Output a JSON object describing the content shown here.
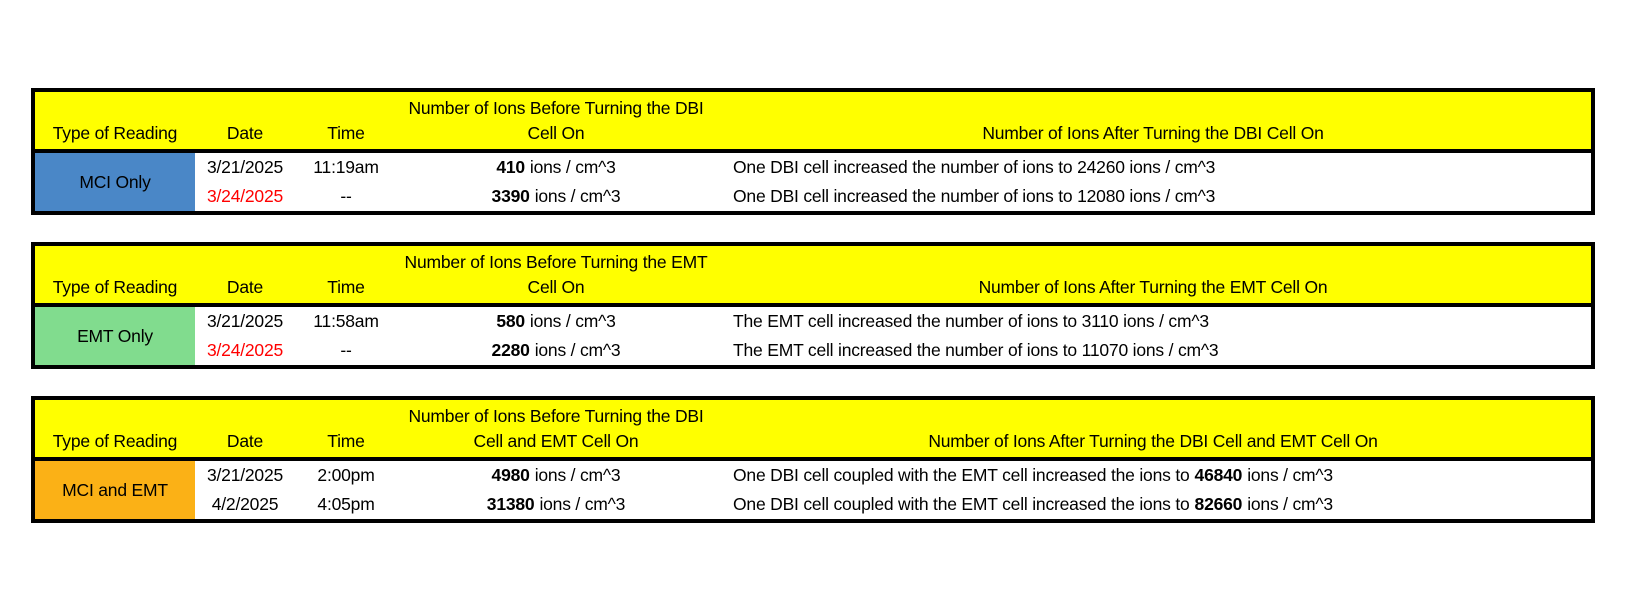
{
  "columns": {
    "type_header": "Type of Reading",
    "date_header": "Date",
    "time_header": "Time"
  },
  "colors": {
    "header_bg": "#FFFF00",
    "mci_only": "#4A87C7",
    "emt_only": "#81DC8E",
    "mci_and_emt": "#FBB116",
    "highlight_date": "#FF0000",
    "default_text": "#000000"
  },
  "tables": [
    {
      "before_title_line1": "Number of Ions Before Turning the DBI",
      "before_title_line2": "Cell On",
      "after_title": "Number of Ions After Turning the DBI Cell On",
      "type_label": "MCI Only",
      "type_color": "#4A87C7",
      "rows": [
        {
          "date": "3/21/2025",
          "date_color": "#000000",
          "time": "11:19am",
          "before_value": "410",
          "before_unit": "ions / cm^3",
          "after_prefix": "One DBI cell increased the number of ions to 24260 ions / cm^3",
          "after_value": "",
          "after_suffix": ""
        },
        {
          "date": "3/24/2025",
          "date_color": "#FF0000",
          "time": "--",
          "before_value": "3390",
          "before_unit": "ions / cm^3",
          "after_prefix": "One DBI cell increased the number of ions to 12080 ions / cm^3",
          "after_value": "",
          "after_suffix": ""
        }
      ]
    },
    {
      "before_title_line1": "Number of Ions Before Turning the EMT",
      "before_title_line2": "Cell On",
      "after_title": "Number of Ions After Turning the EMT Cell On",
      "type_label": "EMT Only",
      "type_color": "#81DC8E",
      "rows": [
        {
          "date": "3/21/2025",
          "date_color": "#000000",
          "time": "11:58am",
          "before_value": "580",
          "before_unit": "ions / cm^3",
          "after_prefix": "The EMT cell increased the number of ions to 3110 ions / cm^3",
          "after_value": "",
          "after_suffix": ""
        },
        {
          "date": "3/24/2025",
          "date_color": "#FF0000",
          "time": "--",
          "before_value": "2280",
          "before_unit": "ions / cm^3",
          "after_prefix": "The EMT cell increased the number of ions to 11070 ions / cm^3",
          "after_value": "",
          "after_suffix": ""
        }
      ]
    },
    {
      "before_title_line1": "Number of Ions Before Turning the DBI",
      "before_title_line2": "Cell and EMT Cell On",
      "after_title": "Number of Ions After Turning the DBI Cell and EMT Cell On",
      "type_label": "MCI and EMT",
      "type_color": "#FBB116",
      "rows": [
        {
          "date": "3/21/2025",
          "date_color": "#000000",
          "time": "2:00pm",
          "before_value": "4980",
          "before_unit": "ions / cm^3",
          "after_prefix": "One DBI cell coupled with the EMT cell increased the ions to",
          "after_value": "46840",
          "after_suffix": "ions / cm^3"
        },
        {
          "date": "4/2/2025",
          "date_color": "#000000",
          "time": "4:05pm",
          "before_value": "31380",
          "before_unit": "ions / cm^3",
          "after_prefix": "One DBI cell coupled with the EMT cell increased the ions to",
          "after_value": "82660",
          "after_suffix": "ions / cm^3"
        }
      ]
    }
  ]
}
